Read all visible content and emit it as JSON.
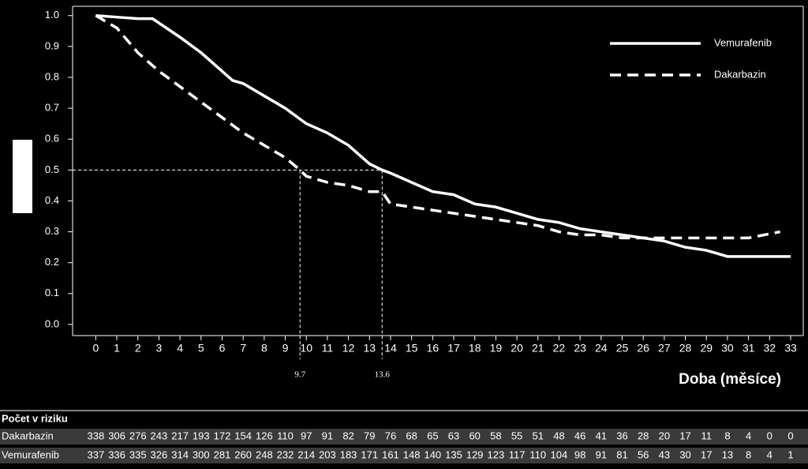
{
  "chart_data": {
    "type": "line",
    "xlabel": "Doba (měsíce)",
    "xlim": [
      -1.1,
      33.6
    ],
    "xticks": [
      0,
      1,
      2,
      3,
      4,
      5,
      6,
      7,
      8,
      9,
      10,
      11,
      12,
      13,
      14,
      15,
      16,
      17,
      18,
      19,
      20,
      21,
      22,
      23,
      24,
      25,
      26,
      27,
      28,
      29,
      30,
      31,
      32,
      33
    ],
    "ylim": [
      -0.036,
      1.03
    ],
    "yticks": [
      {
        "value": 0,
        "label": "0.0"
      },
      0.1,
      0.2,
      0.3,
      0.4,
      0.5,
      0.6,
      0.7,
      0.8,
      0.9,
      {
        "value": 1,
        "label": "1.0"
      }
    ],
    "legend": "upper right",
    "series": [
      {
        "name": "Vemurafenib",
        "color": "#ffffff",
        "style": "solid",
        "x": [
          0,
          1,
          2,
          2.7,
          4,
          5,
          6,
          6.5,
          7,
          8,
          9,
          10,
          11,
          12,
          13,
          13.6,
          14,
          15,
          16,
          17,
          18,
          19,
          20,
          21,
          22,
          23,
          24,
          25,
          26,
          27,
          28,
          29,
          30,
          33
        ],
        "values": [
          1.0,
          0.995,
          0.99,
          0.99,
          0.93,
          0.88,
          0.82,
          0.79,
          0.78,
          0.74,
          0.7,
          0.65,
          0.62,
          0.58,
          0.52,
          0.5,
          0.49,
          0.46,
          0.43,
          0.42,
          0.39,
          0.38,
          0.36,
          0.34,
          0.33,
          0.31,
          0.3,
          0.29,
          0.28,
          0.27,
          0.25,
          0.24,
          0.22,
          0.22
        ]
      },
      {
        "name": "Dakarbazin",
        "color": "#ffffff",
        "style": "dashed",
        "x": [
          0,
          1,
          2,
          3,
          4,
          5,
          6,
          7,
          8,
          9,
          9.7,
          10,
          11,
          12,
          13,
          13.6,
          14,
          15,
          16,
          17,
          18,
          19,
          20,
          21,
          22,
          23,
          24,
          25,
          26,
          27,
          28,
          29,
          30,
          31,
          32.5
        ],
        "values": [
          1.0,
          0.96,
          0.88,
          0.82,
          0.77,
          0.72,
          0.67,
          0.62,
          0.58,
          0.54,
          0.5,
          0.48,
          0.46,
          0.45,
          0.43,
          0.43,
          0.39,
          0.38,
          0.37,
          0.36,
          0.35,
          0.34,
          0.33,
          0.32,
          0.3,
          0.29,
          0.29,
          0.28,
          0.28,
          0.28,
          0.28,
          0.28,
          0.28,
          0.28,
          0.3
        ]
      }
    ],
    "median_level": 0.5,
    "medians": [
      9.7,
      13.6
    ],
    "risk_table": {
      "title": "Počet v riziku",
      "rows": [
        {
          "name": "Dakarbazin",
          "values": [
            338,
            306,
            276,
            243,
            217,
            193,
            172,
            154,
            126,
            110,
            97,
            91,
            82,
            79,
            76,
            68,
            65,
            63,
            60,
            58,
            55,
            51,
            48,
            46,
            41,
            36,
            28,
            20,
            17,
            11,
            8,
            4,
            0,
            0
          ]
        },
        {
          "name": "Vemurafenib",
          "values": [
            337,
            336,
            335,
            326,
            314,
            300,
            281,
            260,
            248,
            232,
            214,
            203,
            183,
            171,
            161,
            148,
            140,
            135,
            129,
            123,
            117,
            110,
            104,
            98,
            91,
            81,
            56,
            43,
            30,
            17,
            13,
            8,
            4,
            1
          ]
        }
      ]
    }
  }
}
